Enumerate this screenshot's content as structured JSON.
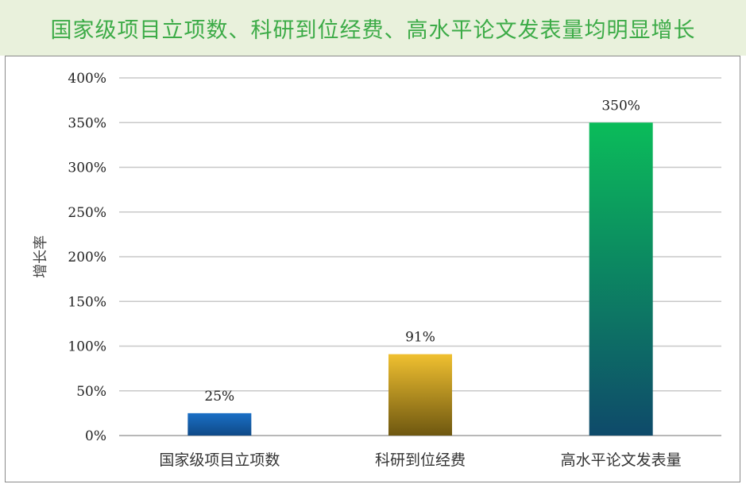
{
  "title": "国家级项目立项数、科研到位经费、高水平论文发表量均明显增长",
  "colors": {
    "title_bg": "#e9f1dc",
    "title_text": "#3cab47",
    "gridline": "#c8c8c8",
    "axis_line": "#a0a0a0"
  },
  "chart_data": {
    "type": "bar",
    "title": "",
    "xlabel": "",
    "ylabel": "增长率",
    "categories": [
      "国家级项目立项数",
      "科研到位经费",
      "高水平论文发表量"
    ],
    "values": [
      25,
      91,
      350
    ],
    "value_labels": [
      "25%",
      "91%",
      "350%"
    ],
    "ylim": [
      0,
      400
    ],
    "yticks": [
      0,
      50,
      100,
      150,
      200,
      250,
      300,
      350,
      400
    ],
    "ytick_labels": [
      "0%",
      "50%",
      "100%",
      "150%",
      "200%",
      "250%",
      "300%",
      "350%",
      "400%"
    ],
    "grid": true,
    "bar_gradients": [
      {
        "top": "#1a6fc6",
        "bottom": "#0f4a87"
      },
      {
        "top": "#f0c030",
        "bottom": "#6e5710"
      },
      {
        "top": "#0bbc5a",
        "bottom": "#0e4a6a"
      }
    ]
  }
}
